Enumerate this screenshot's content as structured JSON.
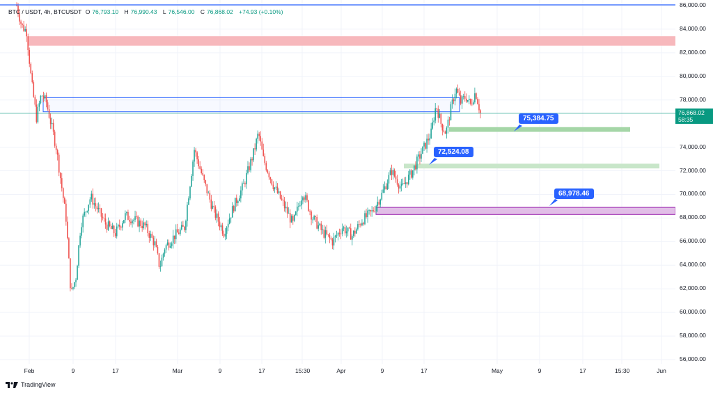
{
  "header": {
    "symbol": "BTC / USDT, 4h, BTCUSDT",
    "open_label": "O",
    "open": "76,793.10",
    "high_label": "H",
    "high": "76,990.43",
    "low_label": "L",
    "low": "76,546.00",
    "close_label": "C",
    "close": "76,868.02",
    "change": "+74.93 (+0.10%)"
  },
  "price_axis": {
    "ticks": [
      "86,000.00",
      "84,000.00",
      "82,000.00",
      "80,000.00",
      "78,000.00",
      "74,000.00",
      "72,000.00",
      "70,000.00",
      "68,000.00",
      "66,000.00",
      "64,000.00",
      "62,000.00",
      "60,000.00",
      "58,000.00",
      "56,000.00"
    ],
    "tick_values": [
      86000,
      84000,
      82000,
      80000,
      78000,
      74000,
      72000,
      70000,
      68000,
      66000,
      64000,
      62000,
      60000,
      58000,
      56000
    ],
    "current_price": "76,868.02",
    "countdown": "58:35",
    "current_value": 76868.02
  },
  "time_axis": {
    "labels": [
      "Feb",
      "9",
      "17",
      "Mar",
      "9",
      "17",
      "15:30",
      "Apr",
      "9",
      "17",
      "May",
      "9",
      "17",
      "15:30",
      "Jun"
    ]
  },
  "annotations": [
    {
      "label": "75,384.75",
      "value": 75384.75
    },
    {
      "label": "72,524.08",
      "value": 72524.08
    },
    {
      "label": "68,978.46",
      "value": 68978.46
    }
  ],
  "zones": [
    {
      "name": "resistance-zone",
      "from": 82600,
      "to": 83400,
      "color": "#f7b8bc"
    },
    {
      "name": "blue-box",
      "from": 77000,
      "to": 78200,
      "color": "#2962ff"
    },
    {
      "name": "green-zone-upper",
      "from": 75300,
      "to": 75700,
      "color": "#a5d6a7"
    },
    {
      "name": "green-zone-lower",
      "from": 72200,
      "to": 72600,
      "color": "#c8e6c9"
    },
    {
      "name": "purple-zone",
      "from": 68300,
      "to": 68900,
      "color": "#e1bee7"
    }
  ],
  "colors": {
    "up": "#26a69a",
    "down": "#ef5350",
    "accent": "#2962ff",
    "price_line": "#089981"
  },
  "chart_data": {
    "type": "candlestick",
    "title": "BTC / USDT, 4h, BTCUSDT",
    "ylim": [
      55500,
      86200
    ],
    "series": [
      {
        "name": "BTCUSDT",
        "close_path": [
          [
            0,
            86000
          ],
          [
            1,
            84300
          ],
          [
            2,
            83800
          ],
          [
            3,
            79500
          ],
          [
            4,
            76500
          ],
          [
            5,
            78500
          ],
          [
            6,
            77800
          ],
          [
            8,
            74000
          ],
          [
            10,
            68000
          ],
          [
            11,
            61500
          ],
          [
            12,
            63000
          ],
          [
            13,
            67500
          ],
          [
            15,
            69800
          ],
          [
            18,
            67500
          ],
          [
            20,
            66700
          ],
          [
            22,
            68200
          ],
          [
            24,
            67800
          ],
          [
            26,
            67300
          ],
          [
            28,
            65800
          ],
          [
            29,
            63800
          ],
          [
            30,
            65500
          ],
          [
            32,
            66500
          ],
          [
            34,
            67200
          ],
          [
            36,
            73800
          ],
          [
            38,
            71000
          ],
          [
            40,
            68500
          ],
          [
            42,
            66800
          ],
          [
            44,
            69000
          ],
          [
            46,
            70800
          ],
          [
            48,
            73500
          ],
          [
            49,
            75200
          ],
          [
            50,
            73000
          ],
          [
            52,
            70800
          ],
          [
            54,
            69200
          ],
          [
            56,
            67500
          ],
          [
            58,
            70200
          ],
          [
            60,
            68000
          ],
          [
            62,
            66800
          ],
          [
            64,
            66000
          ],
          [
            66,
            67200
          ],
          [
            68,
            66500
          ],
          [
            70,
            67800
          ],
          [
            72,
            68500
          ],
          [
            74,
            70000
          ],
          [
            76,
            72000
          ],
          [
            78,
            70500
          ],
          [
            80,
            71800
          ],
          [
            82,
            73500
          ],
          [
            84,
            75200
          ],
          [
            85,
            77600
          ],
          [
            86,
            76000
          ],
          [
            87,
            75200
          ],
          [
            88,
            77200
          ],
          [
            89,
            79000
          ],
          [
            90,
            77800
          ],
          [
            91,
            78300
          ],
          [
            92,
            77600
          ],
          [
            93,
            78700
          ],
          [
            94,
            76900
          ]
        ]
      }
    ]
  }
}
